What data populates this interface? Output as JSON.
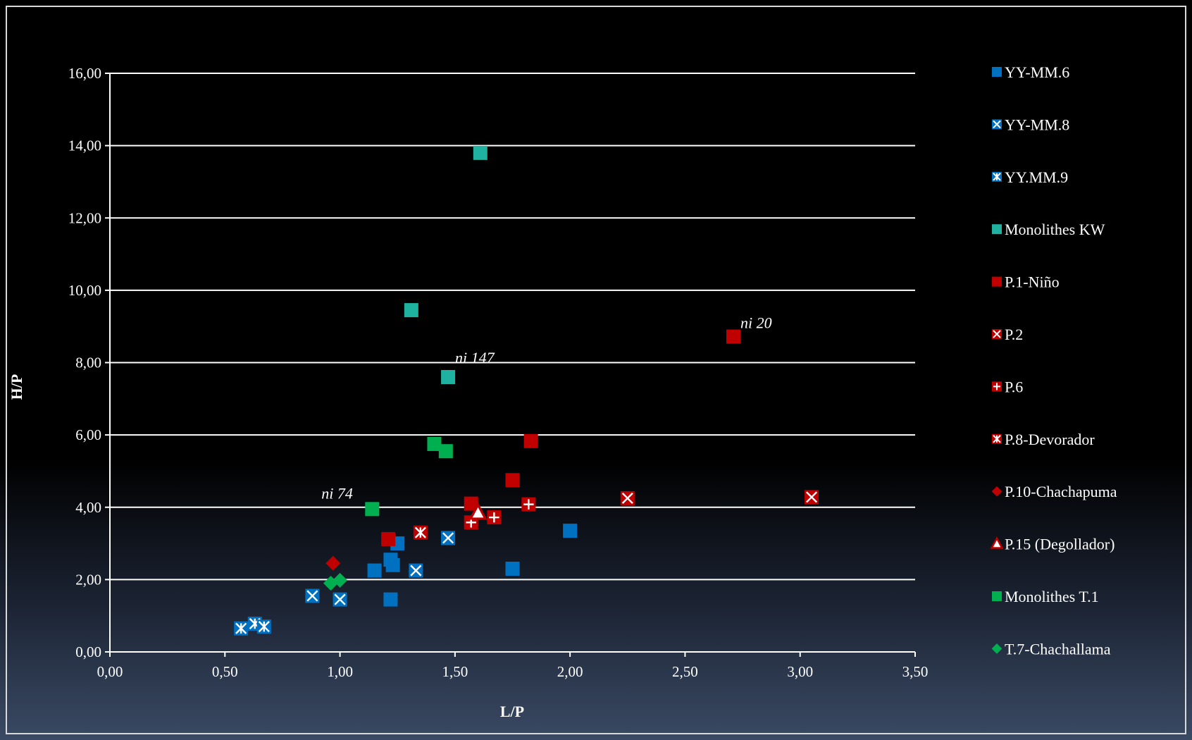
{
  "chart_data": {
    "type": "scatter",
    "xlabel": "L/P",
    "ylabel": "H/P",
    "xlim": [
      0,
      3.5
    ],
    "ylim": [
      0,
      16
    ],
    "x_ticks": [
      "0,00",
      "0,50",
      "1,00",
      "1,50",
      "2,00",
      "2,50",
      "3,00",
      "3,50"
    ],
    "y_ticks": [
      "0,00",
      "2,00",
      "4,00",
      "6,00",
      "8,00",
      "10,00",
      "12,00",
      "14,00",
      "16,00"
    ],
    "grid": "horizontal",
    "legend_position": "right",
    "series": [
      {
        "name": "YY-MM.6",
        "marker": "square",
        "color": "#0070c0",
        "points": [
          [
            1.15,
            2.25
          ],
          [
            1.22,
            2.55
          ],
          [
            1.23,
            2.4
          ],
          [
            1.25,
            3.0
          ],
          [
            1.22,
            1.45
          ],
          [
            1.75,
            2.3
          ],
          [
            2.0,
            3.35
          ]
        ]
      },
      {
        "name": "YY-MM.8",
        "marker": "square-x",
        "color": "#0070c0",
        "points": [
          [
            0.88,
            1.55
          ],
          [
            1.0,
            1.45
          ],
          [
            1.33,
            2.25
          ],
          [
            1.47,
            3.15
          ]
        ]
      },
      {
        "name": "YY.MM.9",
        "marker": "square-star",
        "color": "#0070c0",
        "points": [
          [
            0.57,
            0.65
          ],
          [
            0.63,
            0.78
          ],
          [
            0.67,
            0.7
          ]
        ]
      },
      {
        "name": "Monolithes KW",
        "marker": "square",
        "color": "#20b2a0",
        "points": [
          [
            1.61,
            13.8
          ],
          [
            1.31,
            9.45
          ],
          [
            1.47,
            7.6
          ]
        ]
      },
      {
        "name": "P.1-Niño",
        "marker": "square",
        "color": "#c00000",
        "points": [
          [
            2.71,
            8.72
          ],
          [
            1.83,
            5.83
          ],
          [
            1.75,
            4.75
          ],
          [
            1.57,
            4.1
          ],
          [
            1.21,
            3.12
          ]
        ]
      },
      {
        "name": "P.2",
        "marker": "square-x",
        "color": "#c00000",
        "points": [
          [
            2.25,
            4.25
          ],
          [
            3.05,
            4.28
          ]
        ]
      },
      {
        "name": "P.6",
        "marker": "square-plus",
        "color": "#c00000",
        "points": [
          [
            1.57,
            3.58
          ],
          [
            1.67,
            3.72
          ],
          [
            1.82,
            4.08
          ]
        ]
      },
      {
        "name": "P.8-Devorador",
        "marker": "square-star",
        "color": "#c00000",
        "points": [
          [
            1.35,
            3.3
          ]
        ]
      },
      {
        "name": "P.10-Chachapuma",
        "marker": "diamond",
        "color": "#c00000",
        "points": [
          [
            0.97,
            2.45
          ]
        ]
      },
      {
        "name": "P.15 (Degollador)",
        "marker": "triangle",
        "color": "#c00000",
        "points": [
          [
            1.6,
            3.85
          ]
        ]
      },
      {
        "name": "Monolithes T.1",
        "marker": "square",
        "color": "#00b050",
        "points": [
          [
            1.14,
            3.95
          ],
          [
            1.41,
            5.75
          ],
          [
            1.46,
            5.55
          ]
        ]
      },
      {
        "name": "T.7-Chachallama",
        "marker": "diamond",
        "color": "#00b050",
        "points": [
          [
            0.96,
            1.9
          ],
          [
            1.0,
            1.98
          ]
        ]
      }
    ],
    "annotations": [
      {
        "text": "ni 20",
        "x": 2.71,
        "y": 8.72
      },
      {
        "text": "ni 147",
        "x": 1.47,
        "y": 7.6
      },
      {
        "text": "ni 74",
        "x": 1.14,
        "y": 3.95
      }
    ]
  }
}
